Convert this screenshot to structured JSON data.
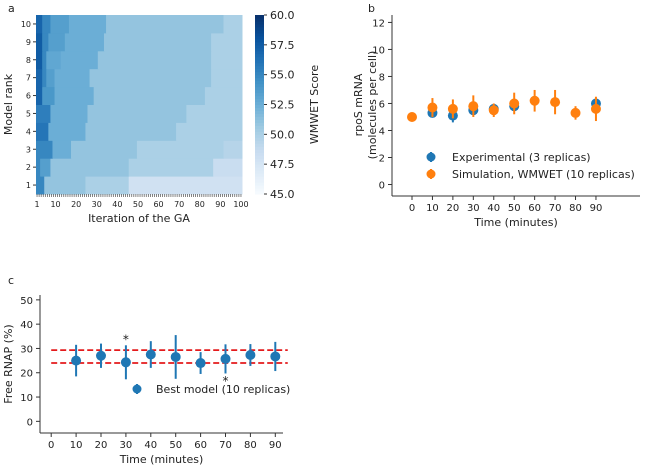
{
  "chart_data": [
    {
      "panel": "a",
      "type": "heatmap",
      "xlabel": "Iteration of the GA",
      "ylabel": "Model rank",
      "xticks": [
        1,
        10,
        20,
        30,
        40,
        50,
        60,
        70,
        80,
        90,
        100
      ],
      "yticks": [
        1,
        2,
        3,
        4,
        5,
        6,
        7,
        8,
        9,
        10
      ],
      "colorbar": {
        "label": "WMWET Score",
        "range": [
          45,
          60
        ],
        "ticks": [
          "45.0",
          "47.5",
          "50.0",
          "52.5",
          "55.0",
          "57.5",
          "60.0"
        ]
      },
      "rows": [
        {
          "rank": 1,
          "segments": [
            [
              1,
              55
            ],
            [
              5,
              51
            ],
            [
              25,
              50
            ],
            [
              46,
              48
            ]
          ]
        },
        {
          "rank": 2,
          "segments": [
            [
              1,
              55
            ],
            [
              3,
              53.5
            ],
            [
              8,
              51
            ],
            [
              46,
              50
            ],
            [
              87,
              48.5
            ]
          ]
        },
        {
          "rank": 3,
          "segments": [
            [
              1,
              55
            ],
            [
              9,
              52.5
            ],
            [
              18,
              51
            ],
            [
              50,
              50
            ],
            [
              92,
              49.5
            ]
          ]
        },
        {
          "rank": 4,
          "segments": [
            [
              1,
              56
            ],
            [
              7,
              52.5
            ],
            [
              25,
              51
            ],
            [
              69,
              50
            ]
          ]
        },
        {
          "rank": 5,
          "segments": [
            [
              1,
              55.5
            ],
            [
              8,
              52.5
            ],
            [
              26,
              51
            ],
            [
              74,
              50
            ]
          ]
        },
        {
          "rank": 6,
          "segments": [
            [
              1,
              57
            ],
            [
              4,
              54
            ],
            [
              10,
              52.5
            ],
            [
              29,
              51
            ],
            [
              83,
              50
            ]
          ]
        },
        {
          "rank": 7,
          "segments": [
            [
              1,
              57
            ],
            [
              4,
              55
            ],
            [
              6,
              53.5
            ],
            [
              10,
              52.5
            ],
            [
              27,
              51
            ],
            [
              86,
              50
            ]
          ]
        },
        {
          "rank": 8,
          "segments": [
            [
              1,
              57.5
            ],
            [
              4,
              55
            ],
            [
              6,
              53
            ],
            [
              13,
              52.5
            ],
            [
              31,
              51
            ],
            [
              86,
              50
            ]
          ]
        },
        {
          "rank": 9,
          "segments": [
            [
              1,
              57.5
            ],
            [
              4,
              55
            ],
            [
              7,
              53.5
            ],
            [
              15,
              52.5
            ],
            [
              34,
              51
            ],
            [
              86,
              50
            ]
          ]
        },
        {
          "rank": 10,
          "segments": [
            [
              1,
              57
            ],
            [
              4,
              55
            ],
            [
              8,
              53.5
            ],
            [
              17,
              52.5
            ],
            [
              35,
              51
            ],
            [
              92,
              50
            ]
          ]
        }
      ]
    },
    {
      "panel": "b",
      "type": "scatter",
      "xlabel": "Time (minutes)",
      "ylabel": "rpoS mRNA\n(molecules per cell)",
      "ylabel_lines": [
        "rpoS mRNA",
        "(molecules per cell)"
      ],
      "xticks": [
        0,
        10,
        20,
        30,
        40,
        50,
        60,
        70,
        80,
        90
      ],
      "yticks": [
        0,
        2,
        4,
        6,
        8,
        10,
        12
      ],
      "ylim": [
        -0.5,
        12.5
      ],
      "series": [
        {
          "name": "Experimental (3 replicas)",
          "color": "#1f77b4",
          "x": [
            10,
            20,
            30,
            40,
            50,
            90
          ],
          "y": [
            5.3,
            5.1,
            5.5,
            5.6,
            5.8,
            6.0
          ],
          "err": [
            0.3,
            0.5,
            0.3,
            0.3,
            0.3,
            0.3
          ]
        },
        {
          "name": "Simulation, WMWET (10 replicas)",
          "color": "#ff7f0e",
          "x": [
            0,
            10,
            20,
            30,
            40,
            50,
            60,
            70,
            80,
            90
          ],
          "y": [
            5.0,
            5.7,
            5.6,
            5.8,
            5.5,
            6.0,
            6.2,
            6.1,
            5.3,
            5.6
          ],
          "err": [
            0.1,
            0.7,
            0.7,
            0.8,
            0.5,
            0.8,
            0.8,
            0.9,
            0.5,
            0.9
          ]
        }
      ],
      "legend": "lower-left"
    },
    {
      "panel": "c",
      "type": "scatter",
      "xlabel": "Time (minutes)",
      "ylabel": "Free RNAP (%)",
      "xticks": [
        0,
        10,
        20,
        30,
        40,
        50,
        60,
        70,
        80,
        90
      ],
      "yticks": [
        0,
        10,
        20,
        30,
        40,
        50
      ],
      "ylim": [
        -2,
        52
      ],
      "series": [
        {
          "name": "Best model (10 replicas)",
          "color": "#1f77b4",
          "x": [
            10,
            20,
            30,
            40,
            50,
            60,
            70,
            80,
            90
          ],
          "y": [
            25,
            27,
            24.3,
            27.5,
            26.5,
            24,
            25.7,
            27.3,
            26.7
          ],
          "err": [
            6.5,
            5,
            7,
            5.5,
            9,
            4.5,
            6,
            4.5,
            6
          ]
        }
      ],
      "hlines": [
        29.3,
        24.0
      ],
      "hline_color": "#e41a1c",
      "annotations": [
        {
          "text": "*",
          "x": 30,
          "y": 34
        },
        {
          "text": "*",
          "x": 70,
          "y": 17
        }
      ],
      "legend": "lower-center"
    }
  ],
  "labels": {
    "a": "a",
    "b": "b",
    "c": "c"
  }
}
